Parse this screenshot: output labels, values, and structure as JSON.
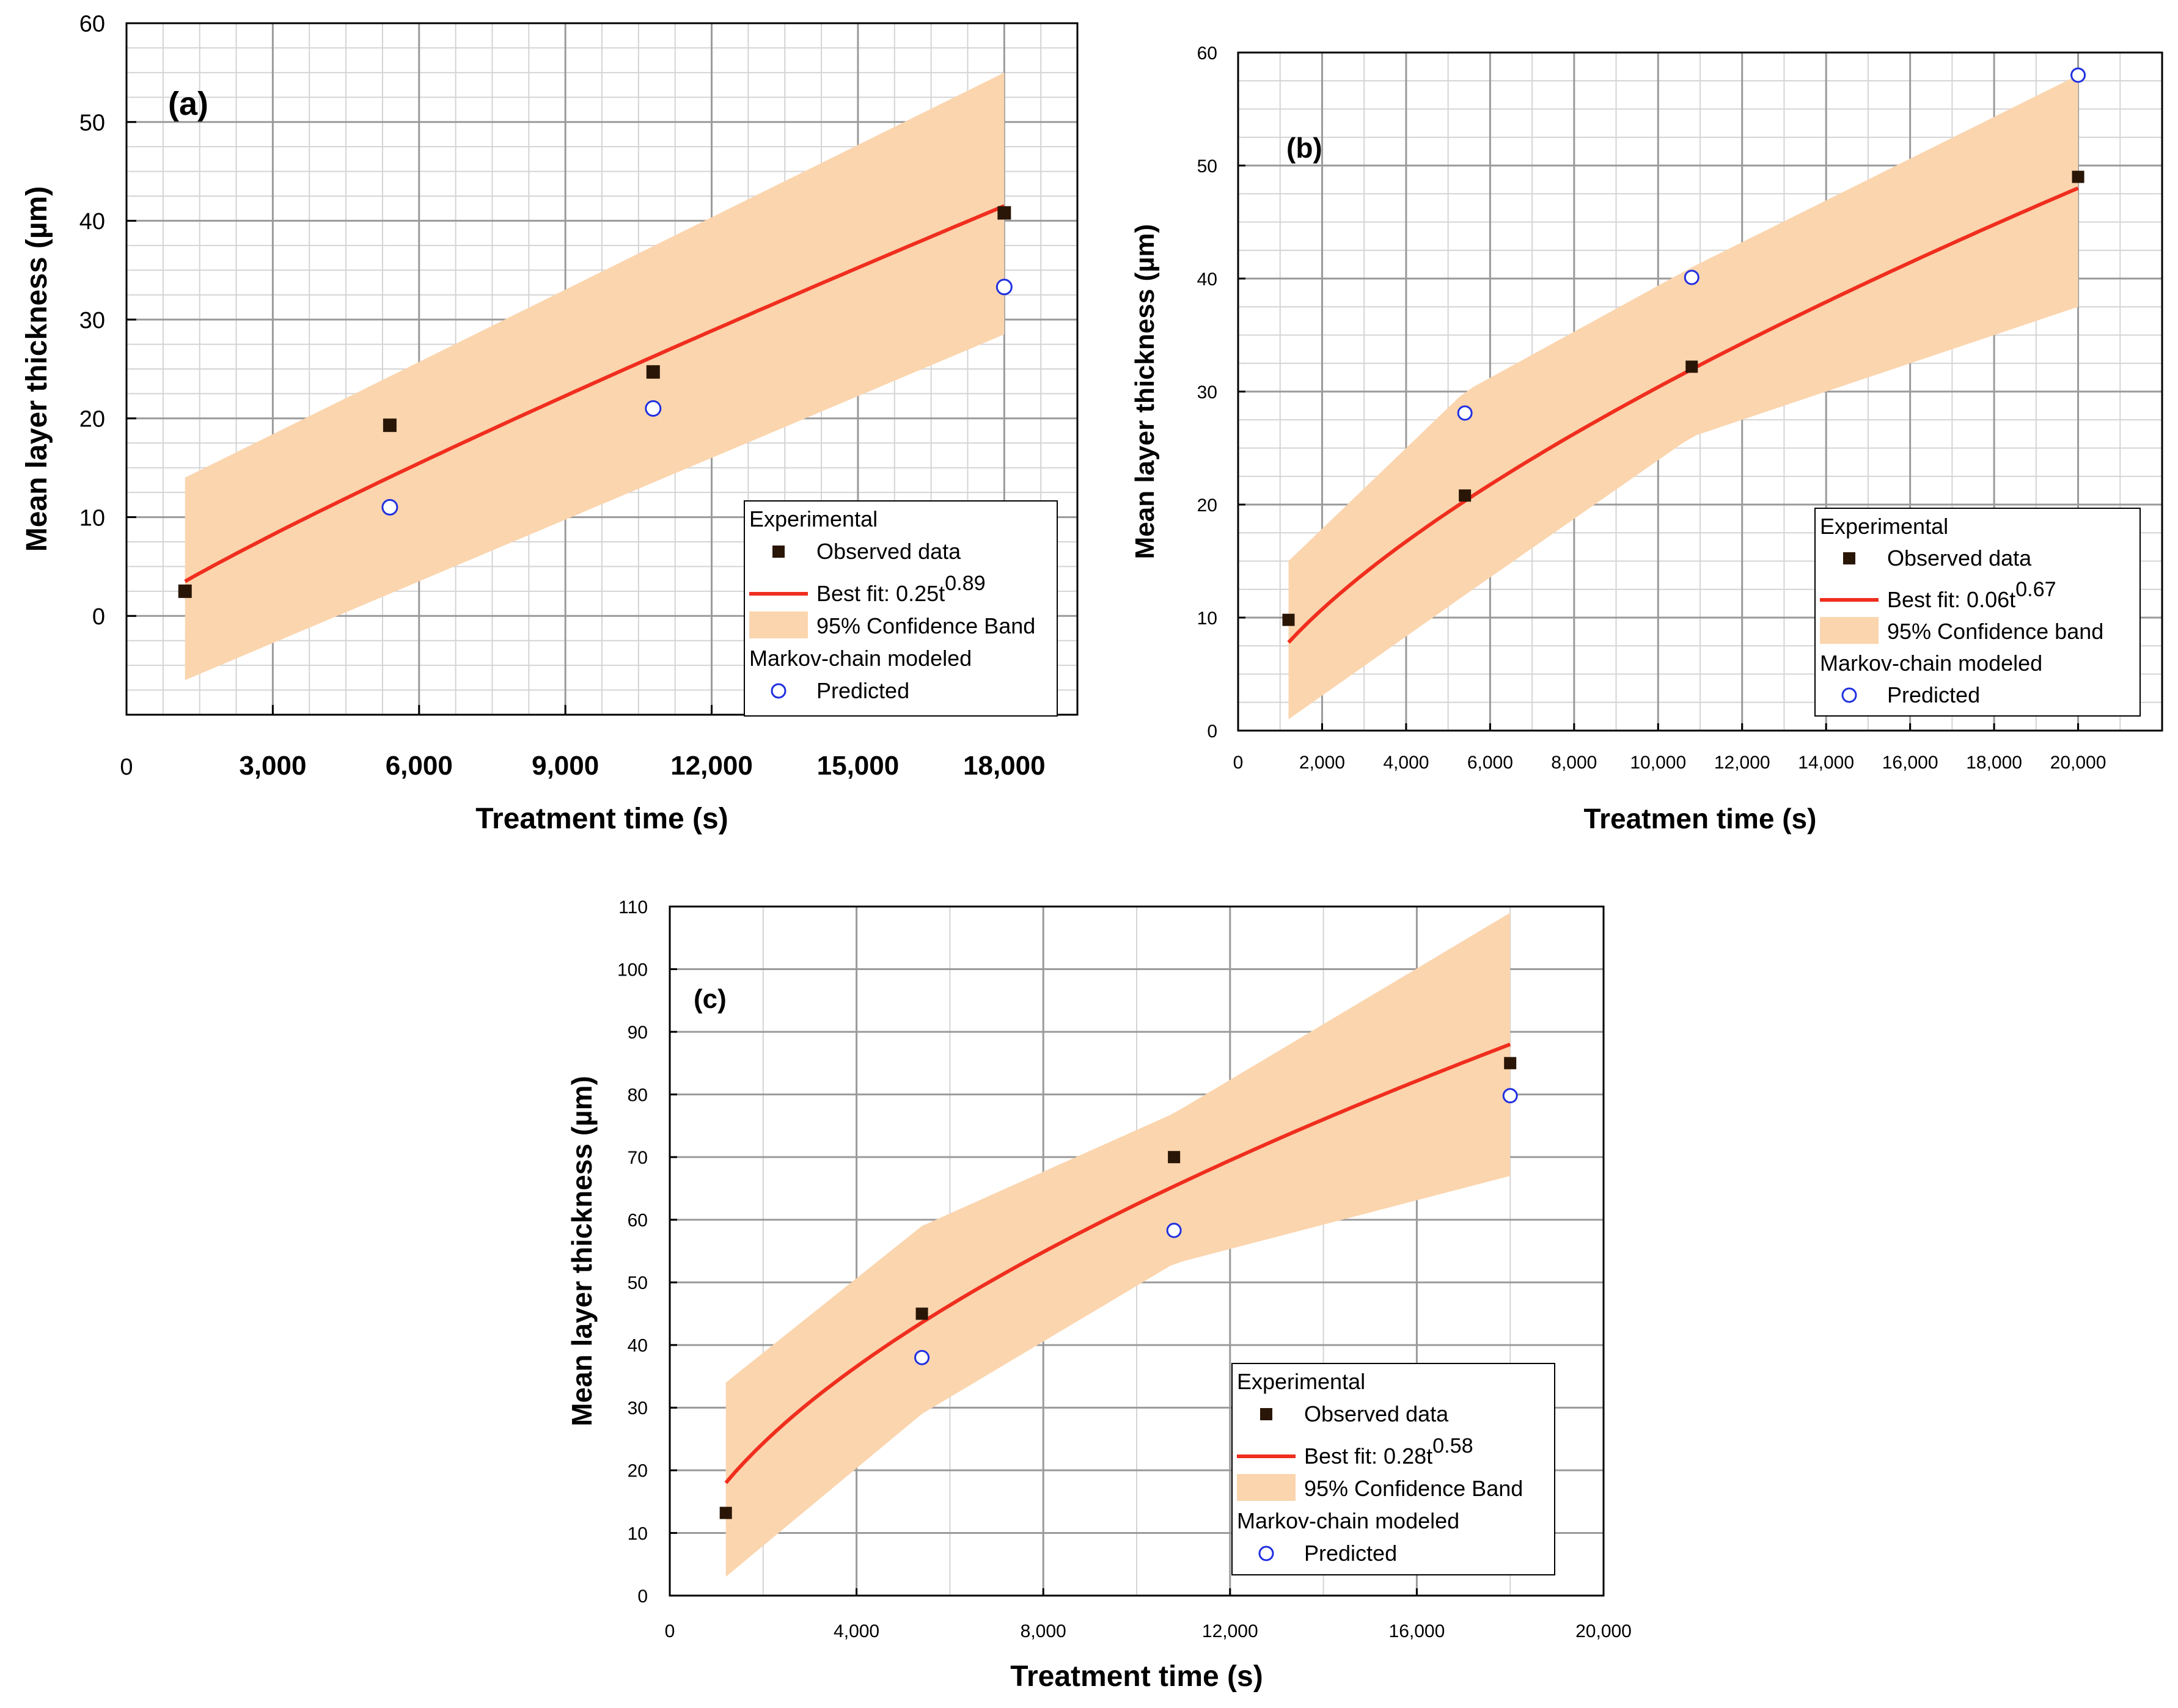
{
  "colors": {
    "band": "#fbd5ae",
    "fit": "#f02e1e",
    "observed": "#2a1606",
    "predicted": "#1f2fe0",
    "grid": "#9a9a9a",
    "grid_minor": "#d4d4d4"
  },
  "chart_data": [
    {
      "type": "scatter",
      "panel_label": "(a)",
      "xlabel": "Treatment time (s)",
      "ylabel": "Mean layer thickness (µm)",
      "xlim": [
        0,
        19500
      ],
      "ylim": [
        -10,
        60
      ],
      "x_ticks": [
        0,
        3000,
        6000,
        9000,
        12000,
        15000,
        18000
      ],
      "x_tick_labels": [
        "0",
        "3,000",
        "6,000",
        "9,000",
        "12,000",
        "15,000",
        "18,000"
      ],
      "y_ticks": [
        0,
        10,
        20,
        30,
        40,
        50,
        60
      ],
      "y_tick_labels": [
        "0",
        "10",
        "20",
        "30",
        "40",
        "50",
        "60"
      ],
      "observed": {
        "name": "Observed data",
        "x": [
          1200,
          5400,
          10800,
          18000
        ],
        "y": [
          2.5,
          19.3,
          24.7,
          40.8
        ]
      },
      "predicted": {
        "name": "Predicted",
        "x": [
          5400,
          10800,
          18000
        ],
        "y": [
          11.0,
          21.0,
          33.3
        ]
      },
      "fit": {
        "name_prefix": "Best fit: 0.25t",
        "exponent": "0.89",
        "coef": 0.25,
        "power": 0.89,
        "x_start": 1200,
        "x_end": 18000
      },
      "band": {
        "name": "95% Confidence Band",
        "x": [
          1200,
          18000
        ],
        "upper": [
          14,
          55
        ],
        "lower": [
          -6.5,
          28.5
        ]
      },
      "legend": {
        "group1": "Experimental",
        "group2": "Markov-chain modeled"
      }
    },
    {
      "type": "scatter",
      "panel_label": "(b)",
      "xlabel": "Treatmen time (s)",
      "ylabel": "Mean layer thickness (µm)",
      "xlim": [
        0,
        22000
      ],
      "ylim": [
        0,
        60
      ],
      "x_ticks": [
        0,
        2000,
        4000,
        6000,
        8000,
        10000,
        12000,
        14000,
        16000,
        18000,
        20000
      ],
      "x_tick_labels": [
        "0",
        "2,000",
        "4,000",
        "6,000",
        "8,000",
        "10,000",
        "12,000",
        "14,000",
        "16,000",
        "18,000",
        "20,000"
      ],
      "y_ticks": [
        0,
        10,
        20,
        30,
        40,
        50,
        60
      ],
      "y_tick_labels": [
        "0",
        "10",
        "20",
        "30",
        "40",
        "50",
        "60"
      ],
      "observed": {
        "name": "Observed data",
        "x": [
          1200,
          5400,
          10800,
          20000
        ],
        "y": [
          9.8,
          20.8,
          32.2,
          49.0
        ]
      },
      "predicted": {
        "name": "Predicted",
        "x": [
          5400,
          10800,
          20000
        ],
        "y": [
          28.1,
          40.1,
          58.0
        ]
      },
      "fit": {
        "name_prefix": "Best fit: 0.06t",
        "exponent": "0.67",
        "coef": 0.06,
        "power": 0.67,
        "x_start": 1200,
        "x_end": 20000
      },
      "band": {
        "name": "95% Confidence band",
        "x": [
          1200,
          5400,
          10800,
          20000
        ],
        "upper": [
          15,
          30,
          41,
          58
        ],
        "lower": [
          1,
          12,
          26,
          37.5
        ]
      },
      "legend": {
        "group1": "Experimental",
        "group2": "Markov-chain modeled"
      }
    },
    {
      "type": "scatter",
      "panel_label": "(c)",
      "xlabel": "Treatment time (s)",
      "ylabel": "Mean layer thickness (µm)",
      "xlim": [
        0,
        20000
      ],
      "ylim": [
        0,
        110
      ],
      "x_ticks": [
        0,
        4000,
        8000,
        12000,
        16000,
        20000
      ],
      "x_tick_labels": [
        "0",
        "4,000",
        "8,000",
        "12,000",
        "16,000",
        "20,000"
      ],
      "y_ticks": [
        0,
        10,
        20,
        30,
        40,
        50,
        60,
        70,
        80,
        90,
        100,
        110
      ],
      "y_tick_labels": [
        "0",
        "10",
        "20",
        "30",
        "40",
        "50",
        "60",
        "70",
        "80",
        "90",
        "100",
        "110"
      ],
      "observed": {
        "name": "Observed data",
        "x": [
          1200,
          5400,
          10800,
          18000
        ],
        "y": [
          13.2,
          45.0,
          70.0,
          85.0
        ]
      },
      "predicted": {
        "name": "Predicted",
        "x": [
          5400,
          10800,
          18000
        ],
        "y": [
          38.0,
          58.3,
          79.8
        ]
      },
      "fit": {
        "name_prefix": "Best fit: 0.28t",
        "exponent": "0.58",
        "coef": 0.28,
        "power": 0.58,
        "x_start": 1200,
        "x_end": 18000
      },
      "band": {
        "name": "95% Confidence Band",
        "x": [
          1200,
          5400,
          10800,
          18000
        ],
        "upper": [
          34,
          59,
          77,
          109
        ],
        "lower": [
          3,
          29,
          53,
          67
        ]
      },
      "legend": {
        "group1": "Experimental",
        "group2": "Markov-chain modeled"
      }
    }
  ]
}
